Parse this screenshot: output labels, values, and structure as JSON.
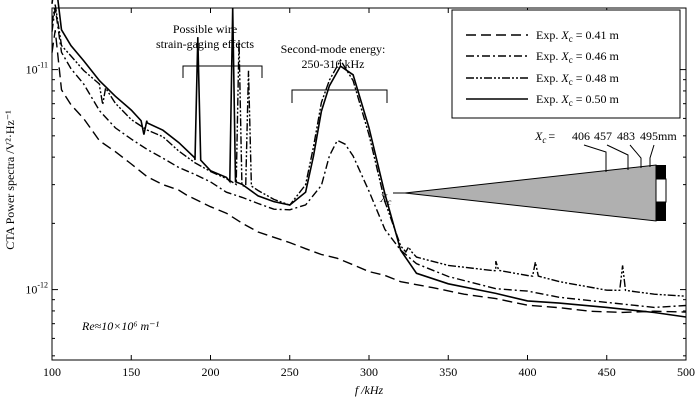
{
  "chart_data": {
    "type": "line",
    "title": "",
    "xlabel": "f /kHz",
    "ylabel": "CTA Power spectra /V²·Hz⁻¹",
    "xlim": [
      100,
      500
    ],
    "ylim_log10": [
      -12.32,
      -10.72
    ],
    "x_ticks": [
      100,
      150,
      200,
      250,
      300,
      350,
      400,
      450,
      500
    ],
    "x_tick_labels": [
      "100",
      "150",
      "200",
      "250",
      "300",
      "350",
      "400",
      "450",
      "500"
    ],
    "y_tick_labels": [
      {
        "value": 1e-11,
        "base": "10",
        "exp": "-11"
      },
      {
        "value": 1e-12,
        "base": "10",
        "exp": "-12"
      }
    ],
    "grid": false,
    "legend_position": "top-right",
    "series": [
      {
        "name": "Exp. X_c = 0.41 m",
        "style": "dashed",
        "points": [
          [
            100,
            1.2e-11
          ],
          [
            102,
            1.5e-11
          ],
          [
            106,
            8e-12
          ],
          [
            112,
            7e-12
          ],
          [
            120,
            6e-12
          ],
          [
            130,
            4.8e-12
          ],
          [
            140,
            4.2e-12
          ],
          [
            150,
            3.7e-12
          ],
          [
            160,
            3.3e-12
          ],
          [
            170,
            3e-12
          ],
          [
            180,
            2.8e-12
          ],
          [
            185,
            2.7e-12
          ],
          [
            190,
            2.6e-12
          ],
          [
            200,
            2.4e-12
          ],
          [
            210,
            2.2e-12
          ],
          [
            220,
            2e-12
          ],
          [
            230,
            1.85e-12
          ],
          [
            240,
            1.72e-12
          ],
          [
            250,
            1.62e-12
          ],
          [
            260,
            1.55e-12
          ],
          [
            270,
            1.45e-12
          ],
          [
            280,
            1.37e-12
          ],
          [
            290,
            1.3e-12
          ],
          [
            300,
            1.22e-12
          ],
          [
            310,
            1.15e-12
          ],
          [
            320,
            1.08e-12
          ],
          [
            340,
            1.02e-12
          ],
          [
            360,
            9.6e-13
          ],
          [
            380,
            9e-13
          ],
          [
            400,
            8.6e-13
          ],
          [
            420,
            8.2e-13
          ],
          [
            440,
            8e-13
          ],
          [
            460,
            7.9e-13
          ],
          [
            480,
            7.9e-13
          ],
          [
            500,
            8e-13
          ]
        ]
      },
      {
        "name": "Exp. X_c = 0.46 m",
        "style": "dashdot",
        "points": [
          [
            100,
            1.5e-11
          ],
          [
            102,
            1.9e-11
          ],
          [
            106,
            1.2e-11
          ],
          [
            112,
            1e-11
          ],
          [
            120,
            8.5e-12
          ],
          [
            130,
            6.5e-12
          ],
          [
            140,
            5.5e-12
          ],
          [
            150,
            4.8e-12
          ],
          [
            160,
            4.3e-12
          ],
          [
            170,
            4e-12
          ],
          [
            180,
            3.6e-12
          ],
          [
            190,
            3.3e-12
          ],
          [
            200,
            3.1e-12
          ],
          [
            210,
            2.8e-12
          ],
          [
            220,
            2.6e-12
          ],
          [
            230,
            2.45e-12
          ],
          [
            240,
            2.35e-12
          ],
          [
            250,
            2.3e-12
          ],
          [
            260,
            2.4e-12
          ],
          [
            270,
            3e-12
          ],
          [
            275,
            4e-12
          ],
          [
            280,
            4.8e-12
          ],
          [
            285,
            4.6e-12
          ],
          [
            290,
            4e-12
          ],
          [
            300,
            2.8e-12
          ],
          [
            310,
            1.9e-12
          ],
          [
            320,
            1.5e-12
          ],
          [
            330,
            1.3e-12
          ],
          [
            350,
            1.15e-12
          ],
          [
            380,
            1.02e-12
          ],
          [
            400,
            9.8e-13
          ],
          [
            420,
            9.2e-13
          ],
          [
            450,
            8.8e-13
          ],
          [
            480,
            8.4e-13
          ],
          [
            500,
            8.4e-13
          ]
        ]
      },
      {
        "name": "Exp. X_c = 0.48 m",
        "style": "dashdotdot",
        "points": [
          [
            100,
            1.6e-11
          ],
          [
            102,
            2e-11
          ],
          [
            106,
            1.3e-11
          ],
          [
            112,
            1.15e-11
          ],
          [
            120,
            1e-11
          ],
          [
            130,
            8.5e-12
          ],
          [
            140,
            7e-12
          ],
          [
            150,
            6e-12
          ],
          [
            160,
            5.3e-12
          ],
          [
            170,
            4.9e-12
          ],
          [
            180,
            4.3e-12
          ],
          [
            190,
            3.8e-12
          ],
          [
            200,
            3.4e-12
          ],
          [
            210,
            3.2e-12
          ],
          [
            220,
            3e-12
          ],
          [
            230,
            2.8e-12
          ],
          [
            240,
            2.55e-12
          ],
          [
            250,
            2.45e-12
          ],
          [
            260,
            3e-12
          ],
          [
            265,
            4.5e-12
          ],
          [
            270,
            7e-12
          ],
          [
            275,
            9e-12
          ],
          [
            282,
            1.1e-11
          ],
          [
            290,
            9e-12
          ],
          [
            300,
            5e-12
          ],
          [
            310,
            2.5e-12
          ],
          [
            320,
            1.6e-12
          ],
          [
            330,
            1.4e-12
          ],
          [
            350,
            1.3e-12
          ],
          [
            380,
            1.22e-12
          ],
          [
            400,
            1.15e-12
          ],
          [
            420,
            1.1e-12
          ],
          [
            450,
            1e-12
          ],
          [
            480,
            9.5e-13
          ],
          [
            500,
            9.3e-13
          ]
        ]
      },
      {
        "name": "Exp. X_c = 0.50 m",
        "style": "solid",
        "points": [
          [
            100,
            2e-11
          ],
          [
            102,
            2.6e-11
          ],
          [
            106,
            1.5e-11
          ],
          [
            112,
            1.3e-11
          ],
          [
            120,
            1.1e-11
          ],
          [
            130,
            9e-12
          ],
          [
            140,
            7.5e-12
          ],
          [
            150,
            6.5e-12
          ],
          [
            160,
            5.8e-12
          ],
          [
            170,
            5.3e-12
          ],
          [
            180,
            4.6e-12
          ],
          [
            190,
            4e-12
          ],
          [
            200,
            3.5e-12
          ],
          [
            210,
            3.2e-12
          ],
          [
            220,
            3e-12
          ],
          [
            230,
            2.7e-12
          ],
          [
            240,
            2.5e-12
          ],
          [
            250,
            2.4e-12
          ],
          [
            260,
            2.8e-12
          ],
          [
            265,
            4e-12
          ],
          [
            270,
            6.5e-12
          ],
          [
            275,
            8.5e-12
          ],
          [
            282,
            1.05e-11
          ],
          [
            290,
            9.5e-12
          ],
          [
            300,
            5.5e-12
          ],
          [
            310,
            2.7e-12
          ],
          [
            320,
            1.5e-12
          ],
          [
            330,
            1.2e-12
          ],
          [
            350,
            1.05e-12
          ],
          [
            380,
            9.5e-13
          ],
          [
            400,
            9e-13
          ],
          [
            420,
            8.6e-13
          ],
          [
            450,
            8.2e-13
          ],
          [
            480,
            7.8e-13
          ],
          [
            500,
            7.6e-13
          ]
        ]
      }
    ],
    "peaks": [
      {
        "series": 3,
        "f": 192,
        "v": 1.4e-11
      },
      {
        "series": 3,
        "f": 214,
        "v": 1.9e-11
      },
      {
        "series": 2,
        "f": 218,
        "v": 1.35e-11
      },
      {
        "series": 2,
        "f": 224,
        "v": 1e-11
      },
      {
        "series": 3,
        "f": 158,
        "v": 5e-12
      },
      {
        "series": 2,
        "f": 132,
        "v": 7e-12
      },
      {
        "series": 2,
        "f": 325,
        "v": 1.55e-12
      },
      {
        "series": 2,
        "f": 380,
        "v": 1.35e-12
      },
      {
        "series": 2,
        "f": 405,
        "v": 1.35e-12
      },
      {
        "series": 2,
        "f": 460,
        "v": 1.3e-12
      }
    ]
  },
  "legend": {
    "prefix": "Exp. ",
    "var": "X",
    "sub": "c",
    "entries": [
      " = 0.41 m",
      " = 0.46 m",
      " = 0.48 m",
      " = 0.50 m"
    ]
  },
  "annotations": {
    "wire_line1": "Possible wire",
    "wire_line2": "strain-gaging effects",
    "second_line1": "Second-mode energy:",
    "second_line2": "250-310 kHz",
    "re_text": "Re≈10×10⁶ m⁻¹"
  },
  "cone": {
    "xc_var": "X",
    "xc_sub": "c",
    "eq": "=",
    "positions": [
      "406",
      "457",
      "483",
      "495mm"
    ]
  }
}
